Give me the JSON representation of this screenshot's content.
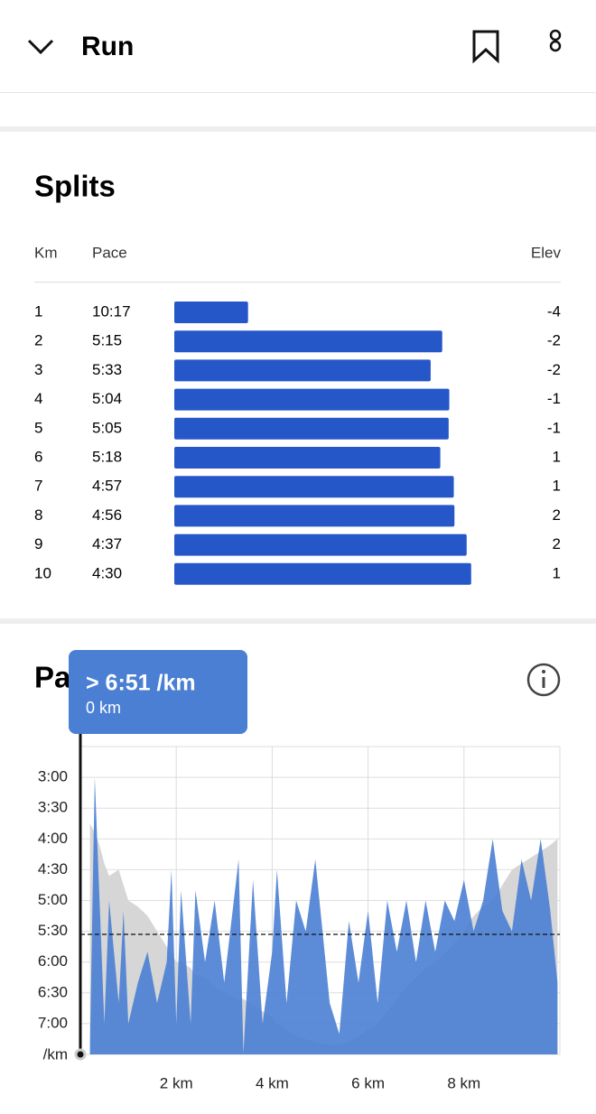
{
  "header": {
    "title": "Run"
  },
  "splits": {
    "title": "Splits",
    "columns": [
      "Km",
      "Pace",
      "Elev"
    ],
    "rows": [
      [
        "1",
        "10:17",
        "-4"
      ],
      [
        "2",
        "5:15",
        "-2"
      ],
      [
        "3",
        "5:33",
        "-2"
      ],
      [
        "4",
        "5:04",
        "-1"
      ],
      [
        "5",
        "5:05",
        "-1"
      ],
      [
        "6",
        "5:18",
        "1"
      ],
      [
        "7",
        "4:57",
        "1"
      ],
      [
        "8",
        "4:56",
        "2"
      ],
      [
        "9",
        "4:37",
        "2"
      ],
      [
        "10",
        "4:30",
        "1"
      ]
    ]
  },
  "chart_data": {
    "type": "area",
    "title": "Pace",
    "tooltip": {
      "value": "> 6:51 /km",
      "distance": "0 km"
    },
    "y_unit": "/km",
    "xlim": [
      0,
      10
    ],
    "xticks": [
      {
        "value": 2,
        "label": "2 km"
      },
      {
        "value": 4,
        "label": "4 km"
      },
      {
        "value": 6,
        "label": "6 km"
      },
      {
        "value": 8,
        "label": "8 km"
      }
    ],
    "ylim": [
      450,
      150
    ],
    "yticks": [
      {
        "value": 180,
        "label": "3:00"
      },
      {
        "value": 210,
        "label": "3:30"
      },
      {
        "value": 240,
        "label": "4:00"
      },
      {
        "value": 270,
        "label": "4:30"
      },
      {
        "value": 300,
        "label": "5:00"
      },
      {
        "value": 330,
        "label": "5:30"
      },
      {
        "value": 360,
        "label": "6:00"
      },
      {
        "value": 390,
        "label": "6:30"
      },
      {
        "value": 420,
        "label": "7:00"
      }
    ],
    "y2lim": [
      0,
      100
    ],
    "grid": true,
    "average": 333,
    "x": [
      0.2,
      0.3,
      0.4,
      0.5,
      0.6,
      0.8,
      0.9,
      1.0,
      1.2,
      1.4,
      1.6,
      1.8,
      1.9,
      2.0,
      2.1,
      2.3,
      2.4,
      2.6,
      2.8,
      3.0,
      3.3,
      3.4,
      3.6,
      3.8,
      4.0,
      4.1,
      4.3,
      4.5,
      4.7,
      4.9,
      5.2,
      5.4,
      5.6,
      5.8,
      6.0,
      6.2,
      6.4,
      6.6,
      6.8,
      7.0,
      7.2,
      7.4,
      7.6,
      7.8,
      8.0,
      8.2,
      8.4,
      8.6,
      8.8,
      9.0,
      9.2,
      9.4,
      9.6,
      9.8,
      9.95
    ],
    "series": [
      {
        "color": "#d6d6d6",
        "axis": "y2",
        "values": [
          75,
          72,
          68,
          62,
          58,
          60,
          55,
          50,
          48,
          45,
          40,
          35,
          33,
          30,
          30,
          28,
          26,
          25,
          22,
          20,
          18,
          18,
          16,
          14,
          12,
          10,
          8,
          6,
          5,
          4,
          3,
          3,
          4,
          6,
          8,
          10,
          14,
          18,
          22,
          25,
          28,
          30,
          33,
          36,
          40,
          45,
          48,
          50,
          55,
          60,
          62,
          64,
          66,
          68,
          70
        ]
      },
      {
        "color": "#4a7fd4",
        "values": [
          440,
          180,
          300,
          420,
          300,
          400,
          310,
          420,
          380,
          350,
          400,
          360,
          270,
          420,
          290,
          420,
          290,
          360,
          300,
          380,
          260,
          449,
          280,
          420,
          350,
          270,
          400,
          300,
          330,
          260,
          400,
          430,
          320,
          380,
          310,
          400,
          300,
          350,
          300,
          360,
          300,
          350,
          300,
          320,
          280,
          330,
          300,
          240,
          310,
          330,
          260,
          300,
          240,
          310,
          380
        ]
      }
    ]
  }
}
